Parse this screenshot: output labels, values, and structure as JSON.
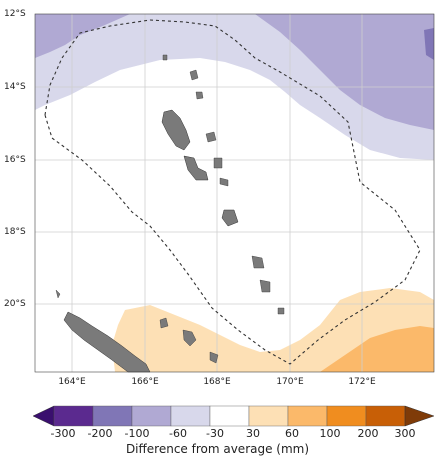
{
  "map": {
    "lat_labels": [
      "12°S",
      "14°S",
      "16°S",
      "18°S",
      "20°S"
    ],
    "lon_labels": [
      "164°E",
      "166°E",
      "168°E",
      "170°E",
      "172°E"
    ],
    "colors": {
      "land": "#7a7a7a",
      "boundary": "#333333",
      "grid": "#cfcfcf"
    }
  },
  "colorbar": {
    "title": "Difference from average (mm)",
    "ticks": [
      "-300",
      "-200",
      "-100",
      "-60",
      "-30",
      "30",
      "60",
      "100",
      "200",
      "300"
    ],
    "colors": [
      "#3a0f6e",
      "#5b2a8f",
      "#8076b6",
      "#b0a9d3",
      "#d8d8eb",
      "#ffffff",
      "#fde0b5",
      "#fbb96a",
      "#f08d1f",
      "#c85f06",
      "#7f3b08"
    ]
  }
}
